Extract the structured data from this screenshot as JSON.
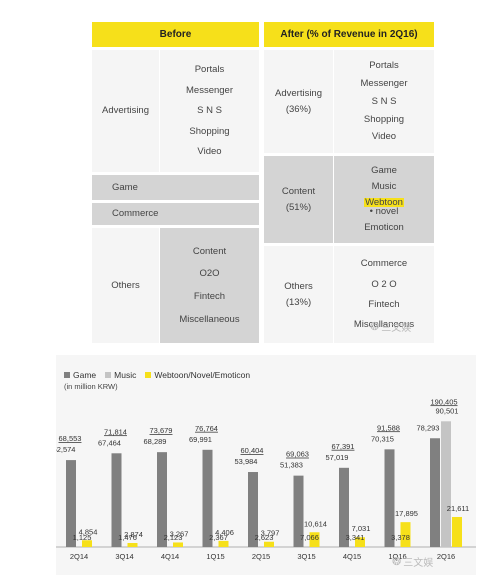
{
  "table": {
    "before_header": "Before",
    "after_header": "After (% of Revenue in 2Q16)",
    "before": {
      "advertising_label": "Advertising",
      "advertising_items": [
        "Portals",
        "Messenger",
        "S N S",
        "Shopping",
        "Video"
      ],
      "game_label": "Game",
      "commerce_label": "Commerce",
      "others_label": "Others",
      "others_items": [
        "Content",
        "O2O",
        "Fintech",
        "Miscellaneous"
      ]
    },
    "after": {
      "advertising_label": "Advertising",
      "advertising_pct": "(36%)",
      "advertising_items": [
        "Portals",
        "Messenger",
        "S N S",
        "Shopping",
        "Video"
      ],
      "content_label": "Content",
      "content_pct": "(51%)",
      "content_items": {
        "game": "Game",
        "music": "Music",
        "webtoon": "Webtoon",
        "novel": " • novel",
        "emoticon": "Emoticon"
      },
      "others_label": "Others",
      "others_pct": "(13%)",
      "others_items": [
        "Commerce",
        "O 2 O",
        "Fintech",
        "Miscellaneous"
      ]
    }
  },
  "watermark": "三文娱",
  "chart_data": {
    "type": "bar",
    "unit_note": "(in million KRW)",
    "categories": [
      "2Q14",
      "3Q14",
      "4Q14",
      "1Q15",
      "2Q15",
      "3Q15",
      "4Q15",
      "1Q16",
      "2Q16"
    ],
    "totals": [
      "68,553",
      "71,814",
      "73,679",
      "76,764",
      "60,404",
      "69,063",
      "67,391",
      "91,588",
      "190,405"
    ],
    "total_values": [
      68553,
      71814,
      73679,
      76764,
      60404,
      69063,
      67391,
      91588,
      190405
    ],
    "series": [
      {
        "name": "Game",
        "color": "#808080",
        "values": [
          62574,
          67464,
          68289,
          69991,
          53984,
          51383,
          57019,
          70315,
          78293
        ],
        "labels": [
          "62,574",
          "67,464",
          "68,289",
          "69,991",
          "53,984",
          "51,383",
          "57,019",
          "70,315",
          "78,293"
        ]
      },
      {
        "name": "Music",
        "color": "#c4c4c4",
        "values": [
          0,
          0,
          0,
          0,
          0,
          0,
          0,
          0,
          90501
        ],
        "labels": [
          "",
          "",
          "",
          "",
          "",
          "",
          "",
          "",
          "90,501"
        ]
      },
      {
        "name": "Webtoon/Novel/Emoticon",
        "color": "#f6e01a",
        "values": [
          4854,
          2874,
          3267,
          4406,
          3797,
          10614,
          7031,
          17895,
          21611
        ],
        "labels": [
          "4,854",
          "2,874",
          "3,267",
          "4,406",
          "3,797",
          "10,614",
          "7,031",
          "17,895",
          "21,611"
        ]
      }
    ],
    "small_labels": [
      "1,125",
      "1,476",
      "2,123",
      "2,367",
      "2,623",
      "7,066",
      "3,341",
      "3,378",
      ""
    ],
    "ylim": [
      0,
      100000
    ],
    "grid": false,
    "legend_position": "top-left"
  }
}
